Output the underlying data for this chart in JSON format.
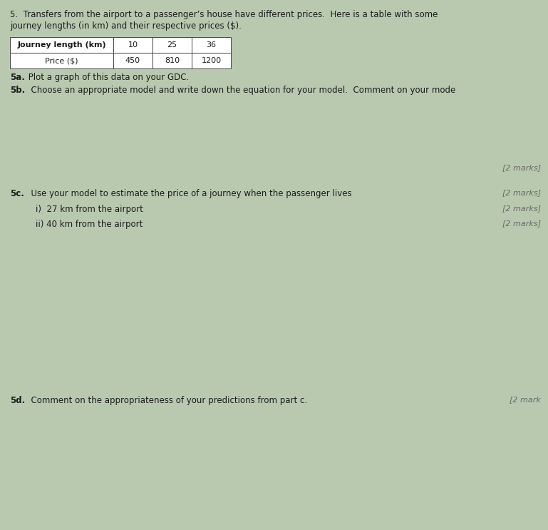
{
  "background_color": "#b8c9b0",
  "title_line1": "5.  Transfers from the airport to a passenger’s house have different prices.  Here is a table with some",
  "title_line2": "journey lengths (in km) and their respective prices ($).",
  "table_headers": [
    "Journey length (km)",
    "10",
    "25",
    "36"
  ],
  "table_row": [
    "Price ($)",
    "450",
    "810",
    "1200"
  ],
  "q5a_bold": "5a.",
  "q5a_rest": "  Plot a graph of this data on your GDC.",
  "q5b_bold": "5b.",
  "q5b_rest": "  Choose an appropriate model and write down the equation for your model.  Comment on your mode",
  "marks_5b": "[2 marks]",
  "q5c_bold": "5c.",
  "q5c_rest": "  Use your model to estimate the price of a journey when the passenger lives",
  "marks_5c_intro": "[2 marks]",
  "q5c_i": "i)  27 km from the airport",
  "marks_5c_i": "[2 marks]",
  "q5c_ii": "ii) 40 km from the airport",
  "marks_5c_ii": "[2 marks]",
  "q5d_bold": "5d.",
  "q5d_rest": "  Comment on the appropriateness of your predictions from part c.",
  "marks_5d": "[2 mark",
  "text_color": "#1c1c1c",
  "marks_color": "#666666",
  "table_border": "#444444",
  "font_size_main": 8.5,
  "font_size_marks": 8.0
}
